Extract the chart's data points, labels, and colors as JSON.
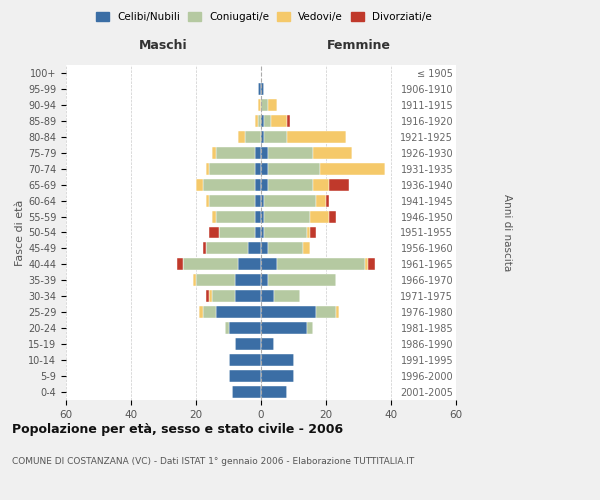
{
  "age_groups": [
    "0-4",
    "5-9",
    "10-14",
    "15-19",
    "20-24",
    "25-29",
    "30-34",
    "35-39",
    "40-44",
    "45-49",
    "50-54",
    "55-59",
    "60-64",
    "65-69",
    "70-74",
    "75-79",
    "80-84",
    "85-89",
    "90-94",
    "95-99",
    "100+"
  ],
  "birth_years": [
    "2001-2005",
    "1996-2000",
    "1991-1995",
    "1986-1990",
    "1981-1985",
    "1976-1980",
    "1971-1975",
    "1966-1970",
    "1961-1965",
    "1956-1960",
    "1951-1955",
    "1946-1950",
    "1941-1945",
    "1936-1940",
    "1931-1935",
    "1926-1930",
    "1921-1925",
    "1916-1920",
    "1911-1915",
    "1906-1910",
    "≤ 1905"
  ],
  "colors": {
    "celibi": "#3b6ea5",
    "coniugati": "#b5c9a1",
    "vedovi": "#f5c96a",
    "divorziati": "#c0392b"
  },
  "maschi": {
    "celibi": [
      9,
      10,
      10,
      8,
      10,
      14,
      8,
      8,
      7,
      4,
      2,
      2,
      2,
      2,
      2,
      2,
      0,
      0,
      0,
      1,
      0
    ],
    "coniugati": [
      0,
      0,
      0,
      0,
      1,
      4,
      7,
      12,
      17,
      13,
      11,
      12,
      14,
      16,
      14,
      12,
      5,
      1,
      0,
      0,
      0
    ],
    "vedovi": [
      0,
      0,
      0,
      0,
      0,
      1,
      1,
      1,
      0,
      0,
      0,
      1,
      1,
      2,
      1,
      1,
      2,
      1,
      1,
      0,
      0
    ],
    "divorziati": [
      0,
      0,
      0,
      0,
      0,
      0,
      1,
      0,
      2,
      1,
      3,
      0,
      0,
      0,
      0,
      0,
      0,
      0,
      0,
      0,
      0
    ]
  },
  "femmine": {
    "celibi": [
      8,
      10,
      10,
      4,
      14,
      17,
      4,
      2,
      5,
      2,
      1,
      1,
      1,
      2,
      2,
      2,
      1,
      1,
      0,
      1,
      0
    ],
    "coniugati": [
      0,
      0,
      0,
      0,
      2,
      6,
      8,
      21,
      27,
      11,
      13,
      14,
      16,
      14,
      16,
      14,
      7,
      2,
      2,
      0,
      0
    ],
    "vedovi": [
      0,
      0,
      0,
      0,
      0,
      1,
      0,
      0,
      1,
      2,
      1,
      6,
      3,
      5,
      20,
      12,
      18,
      5,
      3,
      0,
      0
    ],
    "divorziati": [
      0,
      0,
      0,
      0,
      0,
      0,
      0,
      0,
      2,
      0,
      2,
      2,
      1,
      6,
      0,
      0,
      0,
      1,
      0,
      0,
      0
    ]
  },
  "xlim": 60,
  "title": "Popolazione per età, sesso e stato civile - 2006",
  "subtitle": "COMUNE DI COSTANZANA (VC) - Dati ISTAT 1° gennaio 2006 - Elaborazione TUTTITALIA.IT",
  "ylabel_left": "Fasce di età",
  "ylabel_right": "Anni di nascita",
  "xlabel_maschi": "Maschi",
  "xlabel_femmine": "Femmine",
  "legend_labels": [
    "Celibi/Nubili",
    "Coniugati/e",
    "Vedovi/e",
    "Divorziati/e"
  ],
  "background_color": "#f0f0f0",
  "plot_bg": "#ffffff"
}
